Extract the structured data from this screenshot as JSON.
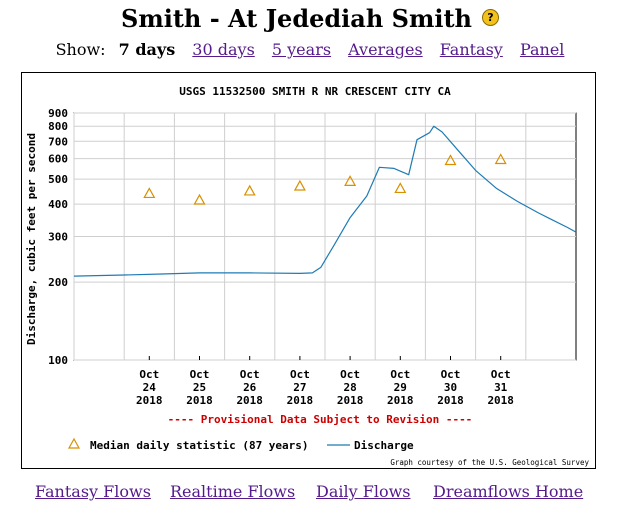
{
  "header": {
    "title": "Smith - At Jedediah Smith",
    "help_icon": "question-mark-icon"
  },
  "show_nav": {
    "label": "Show:",
    "current": "7 days",
    "links": [
      "30 days",
      "5 years",
      "Averages",
      "Fantasy",
      "Panel"
    ]
  },
  "footer_links": [
    "Fantasy Flows",
    "Realtime Flows",
    "Daily Flows",
    "Dreamflows Home"
  ],
  "colors": {
    "discharge_line": "#1f7bb5",
    "median_marker": "#d99000",
    "provisional_text": "#cc0000",
    "link": "#551a8b"
  },
  "chart_data": {
    "type": "line",
    "title": "USGS 11532500 SMITH R NR CRESCENT CITY CA",
    "ylabel": "Discharge, cubic feet per second",
    "yscale": "log",
    "ylim": [
      100,
      900
    ],
    "yticks": [
      100,
      200,
      300,
      400,
      500,
      600,
      700,
      800,
      900
    ],
    "grid": true,
    "x_ticks": [
      {
        "month": "Oct",
        "day": "24",
        "year": "2018"
      },
      {
        "month": "Oct",
        "day": "25",
        "year": "2018"
      },
      {
        "month": "Oct",
        "day": "26",
        "year": "2018"
      },
      {
        "month": "Oct",
        "day": "27",
        "year": "2018"
      },
      {
        "month": "Oct",
        "day": "28",
        "year": "2018"
      },
      {
        "month": "Oct",
        "day": "29",
        "year": "2018"
      },
      {
        "month": "Oct",
        "day": "30",
        "year": "2018"
      },
      {
        "month": "Oct",
        "day": "31",
        "year": "2018"
      }
    ],
    "provisional_note": "---- Provisional Data Subject to Revision ----",
    "legend": {
      "median_label": "Median daily statistic (87 years)",
      "discharge_label": "Discharge",
      "placement": "bottom"
    },
    "credit": "Graph courtesy of the U.S. Geological Survey",
    "series": [
      {
        "name": "Median daily statistic (87 years)",
        "kind": "markers",
        "points": [
          {
            "x": "2018-10-24",
            "y": 440
          },
          {
            "x": "2018-10-25",
            "y": 415
          },
          {
            "x": "2018-10-26",
            "y": 450
          },
          {
            "x": "2018-10-27",
            "y": 470
          },
          {
            "x": "2018-10-28",
            "y": 490
          },
          {
            "x": "2018-10-29",
            "y": 460
          },
          {
            "x": "2018-10-30",
            "y": 590
          },
          {
            "x": "2018-10-31",
            "y": 595
          }
        ]
      },
      {
        "name": "Discharge",
        "kind": "line",
        "points": [
          {
            "x": "2018-10-23 00:00",
            "y": 211
          },
          {
            "x": "2018-10-24 00:00",
            "y": 213
          },
          {
            "x": "2018-10-24 18:00",
            "y": 215
          },
          {
            "x": "2018-10-25 12:00",
            "y": 217
          },
          {
            "x": "2018-10-26 12:00",
            "y": 217
          },
          {
            "x": "2018-10-27 12:00",
            "y": 216
          },
          {
            "x": "2018-10-27 18:00",
            "y": 217
          },
          {
            "x": "2018-10-27 22:00",
            "y": 228
          },
          {
            "x": "2018-10-28 04:00",
            "y": 275
          },
          {
            "x": "2018-10-28 12:00",
            "y": 355
          },
          {
            "x": "2018-10-28 20:00",
            "y": 430
          },
          {
            "x": "2018-10-29 02:00",
            "y": 555
          },
          {
            "x": "2018-10-29 09:00",
            "y": 550
          },
          {
            "x": "2018-10-29 16:00",
            "y": 520
          },
          {
            "x": "2018-10-29 20:00",
            "y": 710
          },
          {
            "x": "2018-10-30 02:00",
            "y": 755
          },
          {
            "x": "2018-10-30 04:00",
            "y": 800
          },
          {
            "x": "2018-10-30 08:00",
            "y": 760
          },
          {
            "x": "2018-10-30 16:00",
            "y": 640
          },
          {
            "x": "2018-10-31 00:00",
            "y": 540
          },
          {
            "x": "2018-10-31 10:00",
            "y": 460
          },
          {
            "x": "2018-10-31 20:00",
            "y": 410
          },
          {
            "x": "2018-11-01 06:00",
            "y": 370
          },
          {
            "x": "2018-11-01 12:00",
            "y": 350
          },
          {
            "x": "2018-11-01 20:00",
            "y": 325
          },
          {
            "x": "2018-11-02 00:00",
            "y": 312
          }
        ]
      }
    ]
  }
}
